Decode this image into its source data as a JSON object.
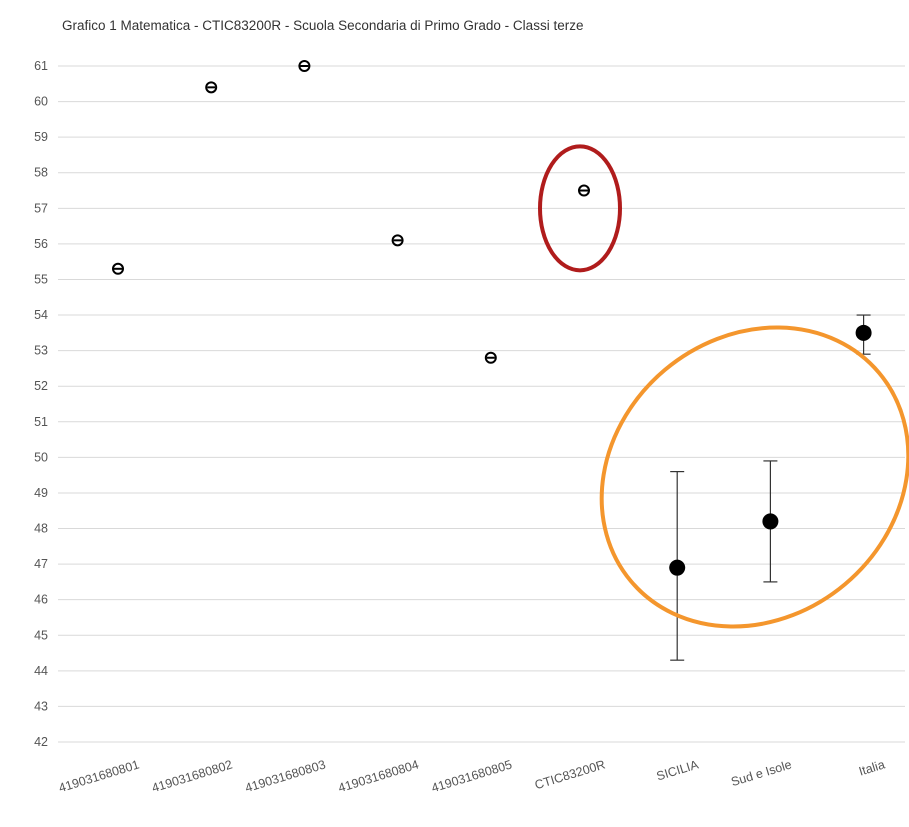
{
  "chart_data": {
    "type": "scatter",
    "title": "Grafico 1 Matematica - CTIC83200R - Scuola Secondaria di Primo Grado - Classi terze",
    "xlabel": "",
    "ylabel": "",
    "ylim": [
      42,
      61
    ],
    "y_ticks": [
      42,
      43,
      44,
      45,
      46,
      47,
      48,
      49,
      50,
      51,
      52,
      53,
      54,
      55,
      56,
      57,
      58,
      59,
      60,
      61
    ],
    "grid": true,
    "categories": [
      "419031680801",
      "419031680802",
      "419031680803",
      "419031680804",
      "419031680805",
      "CTIC83200R",
      "SICILIA",
      "Sud e Isole",
      "Italia"
    ],
    "points": [
      {
        "category": "419031680801",
        "value": 55.3,
        "style": "small"
      },
      {
        "category": "419031680802",
        "value": 60.4,
        "style": "small"
      },
      {
        "category": "419031680803",
        "value": 61.0,
        "style": "small"
      },
      {
        "category": "419031680804",
        "value": 56.1,
        "style": "small"
      },
      {
        "category": "419031680805",
        "value": 52.8,
        "style": "small"
      },
      {
        "category": "CTIC83200R",
        "value": 57.5,
        "style": "small"
      },
      {
        "category": "SICILIA",
        "value": 46.9,
        "style": "large",
        "error_low": 44.3,
        "error_high": 49.6
      },
      {
        "category": "Sud e Isole",
        "value": 48.2,
        "style": "large",
        "error_low": 46.5,
        "error_high": 49.9
      },
      {
        "category": "Italia",
        "value": 53.5,
        "style": "large",
        "error_low": 52.9,
        "error_high": 54.0
      }
    ],
    "annotations": [
      {
        "shape": "ellipse",
        "color": "#b01c1c",
        "target": "CTIC83200R"
      },
      {
        "shape": "ellipse",
        "color": "#f4962d",
        "target": [
          "SICILIA",
          "Sud e Isole",
          "Italia"
        ]
      }
    ],
    "colors": {
      "grid": "#d9d9d9",
      "marker": "#000000",
      "red_highlight": "#b01c1c",
      "orange_highlight": "#f4962d"
    }
  }
}
